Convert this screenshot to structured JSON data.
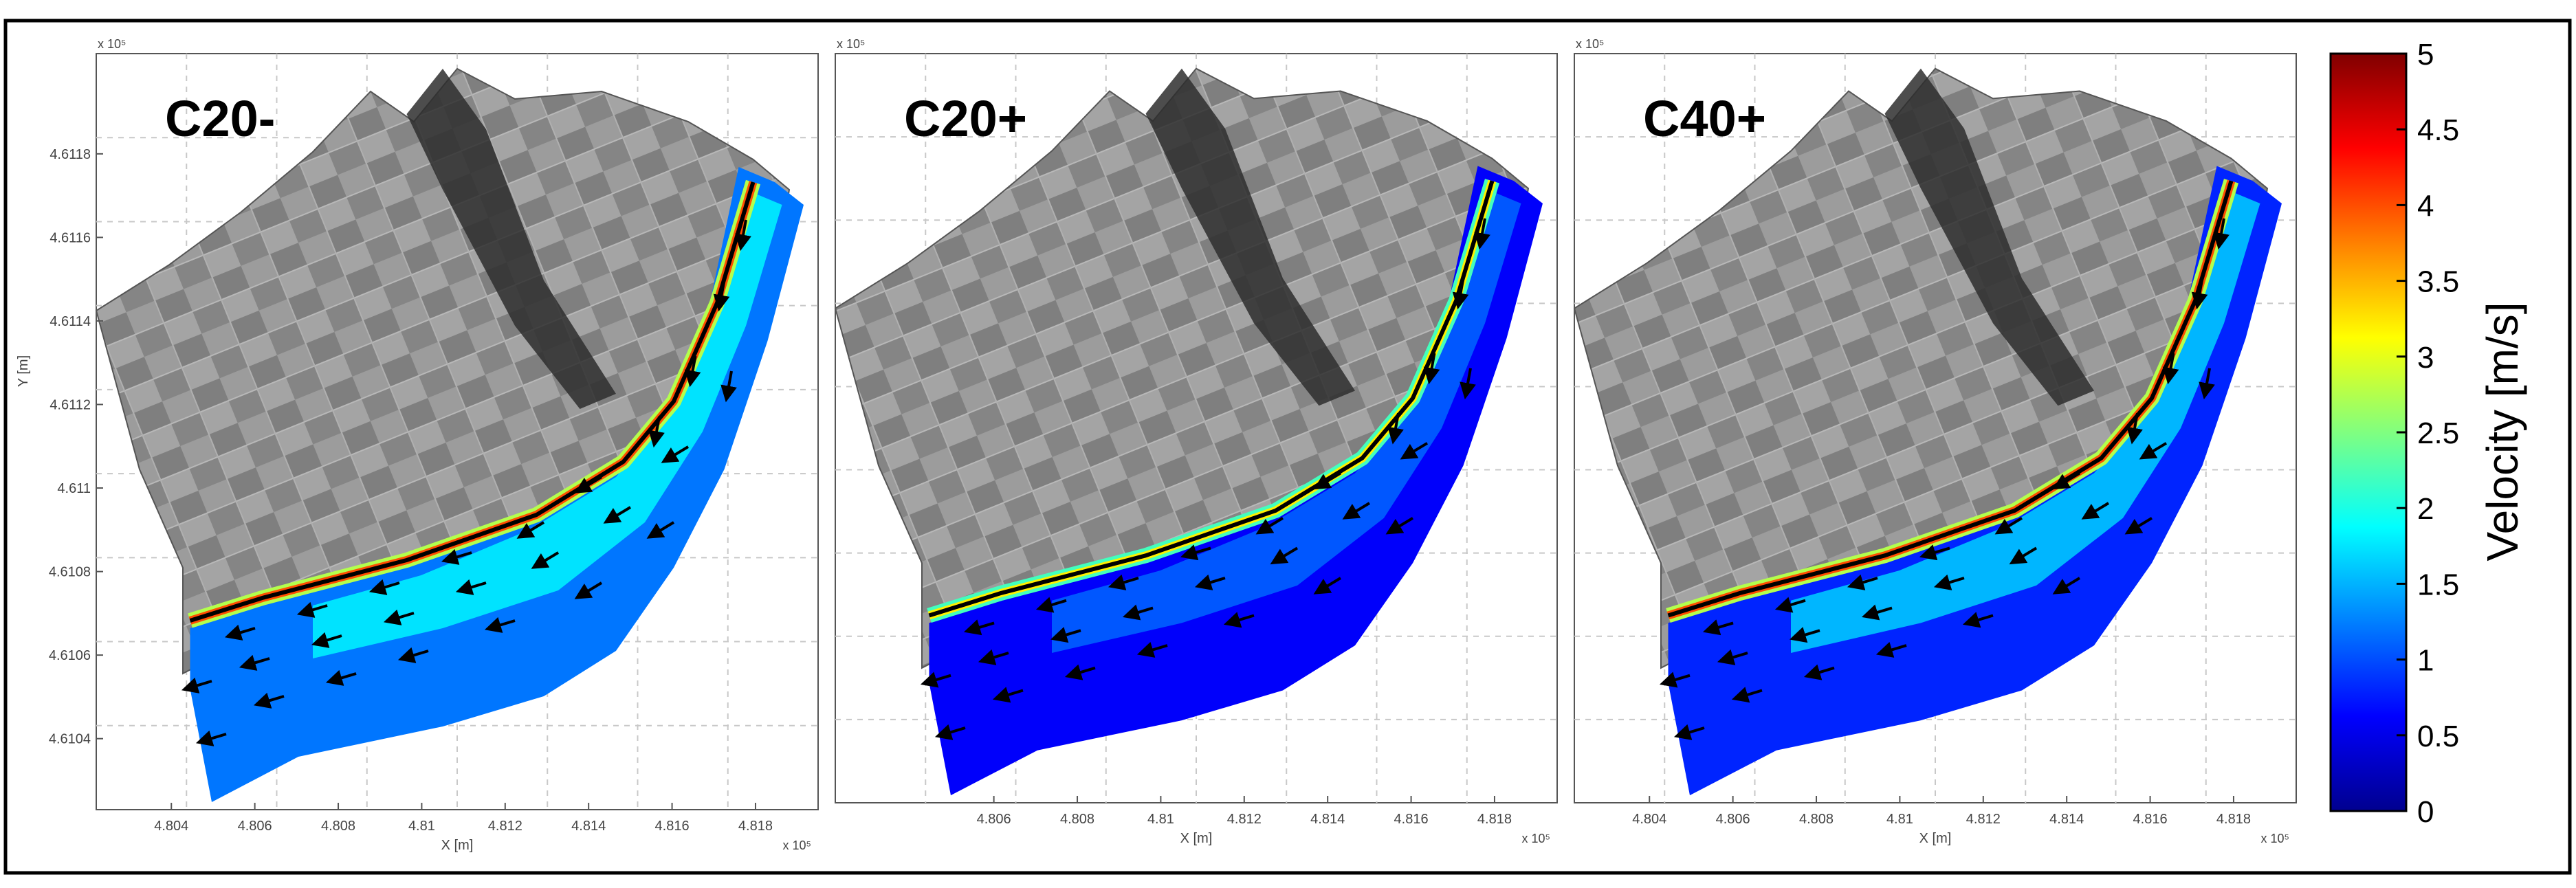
{
  "figure": {
    "x_axis_label": "X [m]",
    "y_axis_label": "Y [m]",
    "exponent_label": "x 10⁵",
    "colorbar": {
      "label": "Velocity [m/s]",
      "ticks": [
        "0",
        "0.5",
        "1",
        "1.5",
        "2",
        "2.5",
        "3",
        "3.5",
        "4",
        "4.5",
        "5"
      ],
      "range": [
        0,
        5
      ],
      "colormap": [
        "#00008f",
        "#0000ff",
        "#0080ff",
        "#00ffff",
        "#80ff80",
        "#ffff00",
        "#ff8000",
        "#ff0000",
        "#800000"
      ]
    }
  },
  "chart_data": [
    {
      "type": "heatmap",
      "title": "C20-",
      "xticks": [
        "4.804",
        "4.806",
        "4.808",
        "4.81",
        "4.812",
        "4.814",
        "4.816",
        "4.818"
      ],
      "yticks": [
        "4.6118",
        "4.6116",
        "4.6114",
        "4.6112",
        "4.611",
        "4.6108",
        "4.6106",
        "4.6104"
      ],
      "bank_velocity_ms": 5,
      "channel_velocity_ms": 1.2,
      "bend_velocity_ms": 1.8
    },
    {
      "type": "heatmap",
      "title": "C20+",
      "xticks": [
        "4.806",
        "4.808",
        "4.81",
        "4.812",
        "4.814",
        "4.816",
        "4.818"
      ],
      "yticks": [],
      "bank_velocity_ms": 4,
      "channel_velocity_ms": 0.6,
      "bend_velocity_ms": 1.1
    },
    {
      "type": "heatmap",
      "title": "C40+",
      "xticks": [
        "4.804",
        "4.806",
        "4.808",
        "4.81",
        "4.812",
        "4.814",
        "4.816",
        "4.818"
      ],
      "yticks": [],
      "bank_velocity_ms": 5,
      "channel_velocity_ms": 0.8,
      "bend_velocity_ms": 1.6
    }
  ]
}
